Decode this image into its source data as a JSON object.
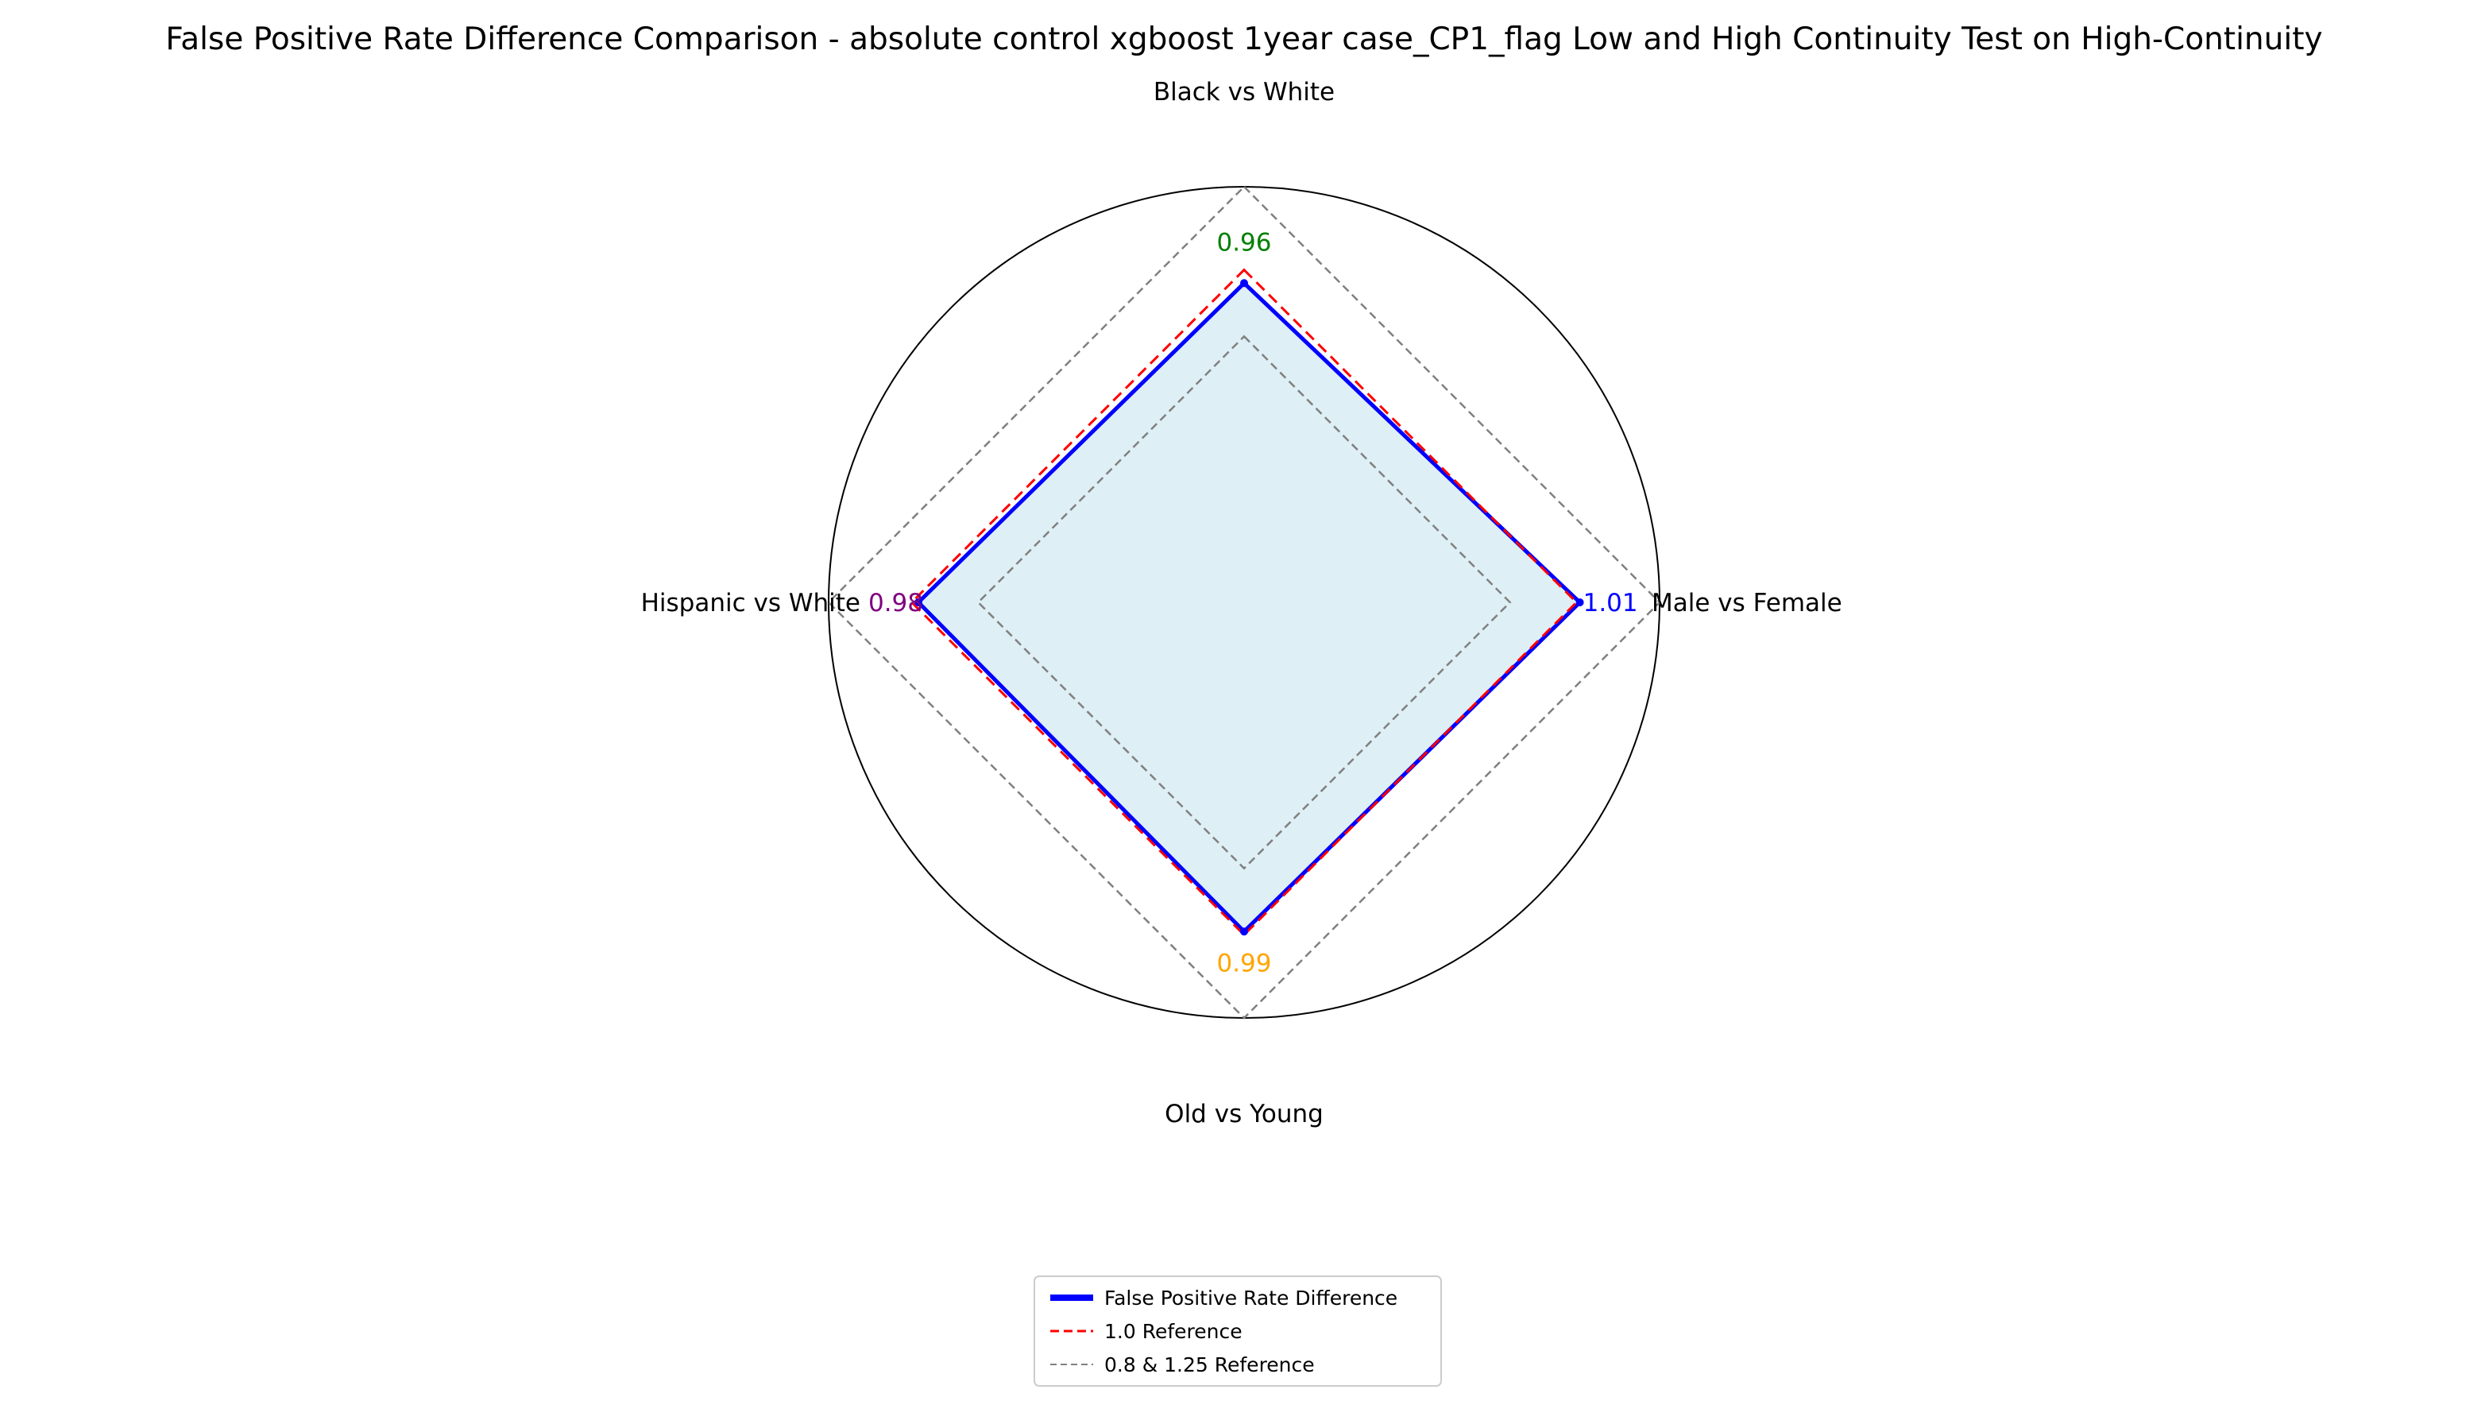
{
  "chart_data": {
    "type": "radar",
    "title": "False Positive Rate Difference Comparison - absolute control xgboost 1year case_CP1_flag Low and High Continuity Test on High-Continuity",
    "categories": [
      "Black vs White",
      "Male vs Female",
      "Old vs Young",
      "Hispanic vs White"
    ],
    "series": [
      {
        "name": "False Positive Rate Difference",
        "values": [
          0.96,
          1.01,
          0.99,
          0.98
        ],
        "color": "#0000ff",
        "fill": "#add8e6"
      }
    ],
    "value_labels": [
      "0.96",
      "1.01",
      "0.99",
      "0.98"
    ],
    "value_label_colors": [
      "#008000",
      "#0000ff",
      "#ffa500",
      "#800080"
    ],
    "reference_lines": [
      {
        "name": "1.0 Reference",
        "value": 1.0,
        "color": "#ff0000",
        "style": "dashed"
      },
      {
        "name": "0.8 & 1.25 Reference",
        "values": [
          0.8,
          1.25
        ],
        "color": "#808080",
        "style": "dashed"
      }
    ],
    "rlim": [
      0,
      1.25
    ],
    "grid": false,
    "legend": {
      "position": "bottom-center",
      "entries": [
        "False Positive Rate Difference",
        "1.0 Reference",
        "0.8 & 1.25 Reference"
      ]
    }
  }
}
